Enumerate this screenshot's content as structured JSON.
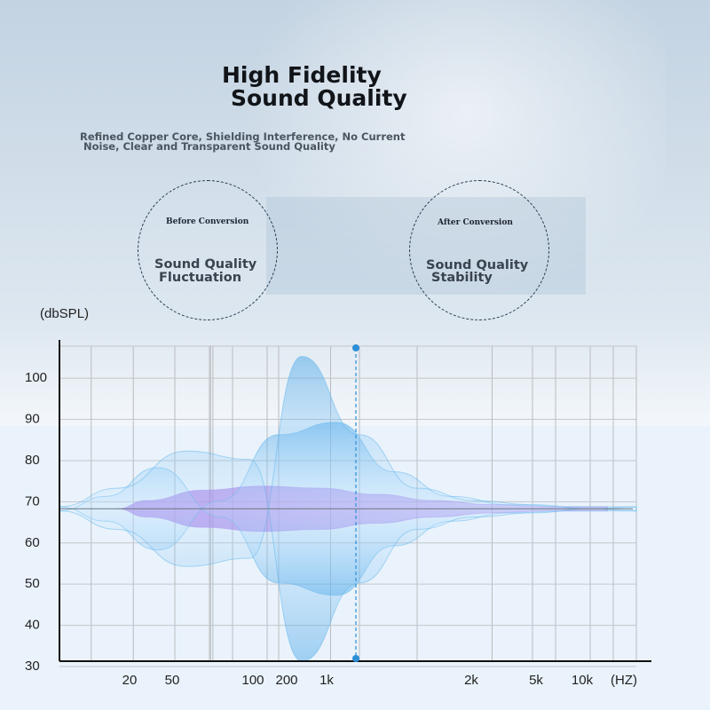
{
  "header": {
    "title_line1": "High Fidelity",
    "title_line2": "Sound Quality",
    "subtitle_line1": "Refined Copper Core, Shielding Interference, No Current",
    "subtitle_line2": "Noise, Clear and Transparent Sound Quality"
  },
  "comparison": {
    "before": {
      "label": "Before Conversion",
      "line1": "Sound Quality",
      "line2": "Fluctuation"
    },
    "after": {
      "label": "After Conversion",
      "line1": "Sound Quality",
      "line2": "Stability"
    }
  },
  "chart_data": {
    "type": "area",
    "ylabel": "(dbSPL)",
    "xlabel": "(HZ)",
    "ylim": [
      30,
      108
    ],
    "yticks": [
      30,
      40,
      50,
      60,
      70,
      80,
      90,
      100
    ],
    "xticks": [
      "20",
      "50",
      "100",
      "200",
      "1k",
      "2k",
      "5k",
      "10k"
    ],
    "baseline_db": 67,
    "series": [
      {
        "style": "purple",
        "points": [
          [
            0.1,
            67
          ],
          [
            0.15,
            69
          ],
          [
            0.25,
            71.5
          ],
          [
            0.35,
            72.5
          ],
          [
            0.45,
            72
          ],
          [
            0.55,
            70.5
          ],
          [
            0.65,
            69
          ],
          [
            0.75,
            68
          ],
          [
            0.85,
            67.5
          ],
          [
            0.95,
            67.5
          ]
        ]
      },
      {
        "style": "blue",
        "points": [
          [
            0.0,
            66.5
          ],
          [
            0.08,
            70
          ],
          [
            0.17,
            77
          ],
          [
            0.28,
            65
          ],
          [
            0.38,
            49
          ],
          [
            0.48,
            46
          ],
          [
            0.58,
            58
          ],
          [
            0.68,
            64
          ],
          [
            0.78,
            66
          ],
          [
            0.88,
            66.5
          ],
          [
            1.0,
            66.5
          ]
        ]
      },
      {
        "style": "blue",
        "points": [
          [
            0.0,
            66.5
          ],
          [
            0.1,
            62
          ],
          [
            0.22,
            53
          ],
          [
            0.33,
            55
          ],
          [
            0.42,
            104
          ],
          [
            0.52,
            85
          ],
          [
            0.62,
            72
          ],
          [
            0.72,
            69
          ],
          [
            0.82,
            68
          ],
          [
            0.92,
            67
          ],
          [
            1.0,
            66.5
          ]
        ]
      }
    ],
    "grid": true
  },
  "colors": {
    "blue": "#3ea0e6",
    "purple": "#a77be8",
    "marker": "#2c8fd6"
  }
}
